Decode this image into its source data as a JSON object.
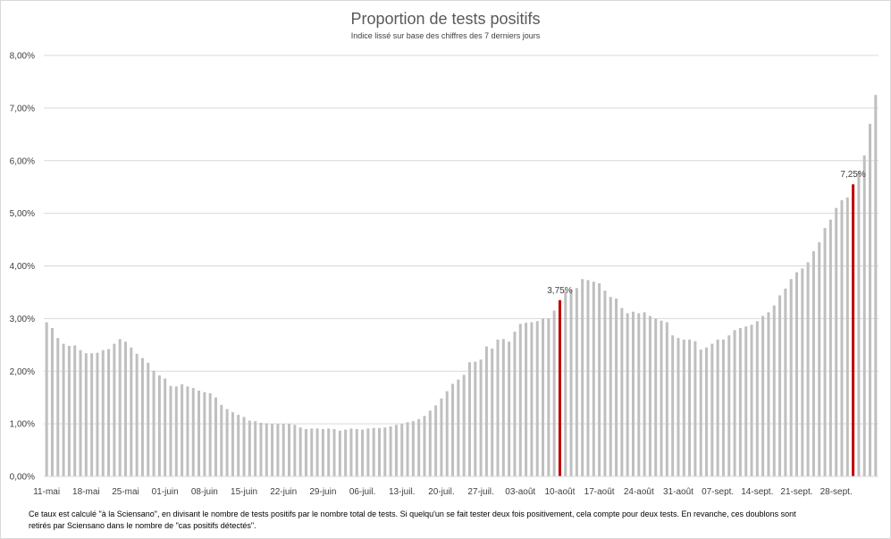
{
  "chart_data": {
    "type": "bar",
    "title": "Proportion de tests positifs",
    "subtitle": "Indice lissé sur base des chiffres des 7 derniers jours",
    "ylim": [
      0,
      8
    ],
    "y_ticks": [
      0,
      1,
      2,
      3,
      4,
      5,
      6,
      7,
      8
    ],
    "y_tick_labels": [
      "0,00%",
      "1,00%",
      "2,00%",
      "3,00%",
      "4,00%",
      "5,00%",
      "6,00%",
      "7,00%",
      "8,00%"
    ],
    "x_tick_labels": [
      "11-mai",
      "18-mai",
      "25-mai",
      "01-juin",
      "08-juin",
      "15-juin",
      "22-juin",
      "29-juin",
      "06-juil.",
      "13-juil.",
      "20-juil.",
      "27-juil.",
      "03-août",
      "10-août",
      "17-août",
      "24-août",
      "31-août",
      "07-sept.",
      "14-sept.",
      "21-sept.",
      "28-sept."
    ],
    "grid": true,
    "bar_color": "#bfbfbf",
    "highlight_color": "#c00000",
    "annotations": [
      {
        "label": "3,75%",
        "index": 91
      },
      {
        "label": "7,25%",
        "index": 143
      }
    ],
    "values": [
      2.93,
      2.82,
      2.63,
      2.52,
      2.48,
      2.49,
      2.4,
      2.34,
      2.34,
      2.35,
      2.4,
      2.42,
      2.52,
      2.61,
      2.56,
      2.45,
      2.33,
      2.25,
      2.16,
      2.01,
      1.92,
      1.86,
      1.72,
      1.71,
      1.75,
      1.71,
      1.68,
      1.63,
      1.6,
      1.58,
      1.5,
      1.36,
      1.28,
      1.22,
      1.17,
      1.13,
      1.06,
      1.05,
      1.02,
      1.01,
      1.0,
      1.0,
      1.0,
      1.0,
      0.98,
      0.93,
      0.9,
      0.91,
      0.91,
      0.9,
      0.91,
      0.9,
      0.87,
      0.89,
      0.91,
      0.9,
      0.89,
      0.91,
      0.92,
      0.92,
      0.93,
      0.95,
      0.98,
      1.0,
      1.03,
      1.05,
      1.09,
      1.15,
      1.25,
      1.35,
      1.48,
      1.62,
      1.76,
      1.84,
      1.93,
      2.17,
      2.18,
      2.22,
      2.47,
      2.43,
      2.6,
      2.61,
      2.56,
      2.75,
      2.9,
      2.92,
      2.93,
      2.95,
      3.0,
      3.0,
      3.15,
      3.35,
      3.52,
      3.55,
      3.58,
      3.75,
      3.73,
      3.7,
      3.67,
      3.53,
      3.41,
      3.38,
      3.2,
      3.1,
      3.13,
      3.1,
      3.12,
      3.05,
      3.0,
      2.96,
      2.93,
      2.68,
      2.63,
      2.6,
      2.6,
      2.57,
      2.41,
      2.45,
      2.52,
      2.6,
      2.6,
      2.68,
      2.78,
      2.82,
      2.85,
      2.88,
      2.95,
      3.05,
      3.12,
      3.25,
      3.44,
      3.57,
      3.75,
      3.88,
      3.95,
      4.07,
      4.28,
      4.45,
      4.72,
      4.88,
      5.1,
      5.25,
      5.3,
      5.55,
      5.8,
      6.1,
      6.7,
      7.25
    ]
  },
  "footnote": {
    "line1": "Ce taux est calculé \"à la Sciensano\", en divisant le nombre de tests positifs par le nombre total de tests. Si quelqu'un se fait tester deux fois positivement, cela compte pour deux tests. En revanche, ces doublons sont",
    "line2": "retirés par Sciensano dans le nombre de \"cas positifs détectés\"."
  }
}
